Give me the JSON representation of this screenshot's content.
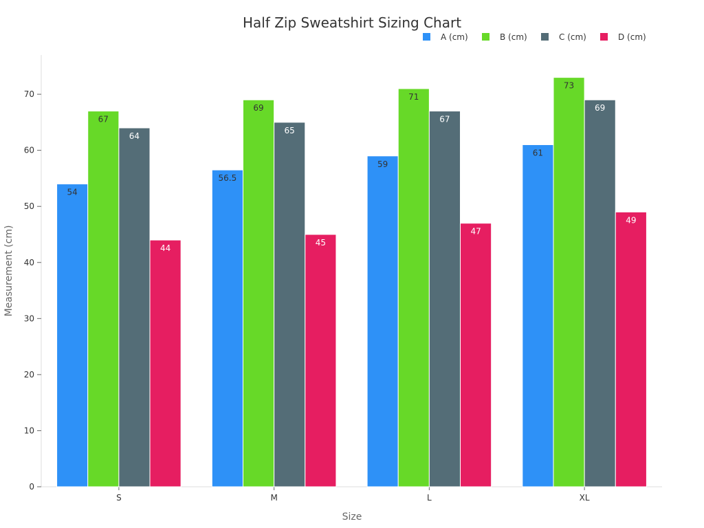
{
  "chart_data": {
    "type": "bar",
    "title": "Half Zip Sweatshirt Sizing Chart",
    "xlabel": "Size",
    "ylabel": "Measurement (cm)",
    "categories": [
      "S",
      "M",
      "L",
      "XL"
    ],
    "ylim": [
      0,
      77
    ],
    "yticks": [
      0,
      10,
      20,
      30,
      40,
      50,
      60,
      70
    ],
    "grid": false,
    "legend_position": "top-right",
    "series": [
      {
        "name": "A (cm)",
        "color": "#2e91f7",
        "label_color": "#333333",
        "values": [
          54,
          56.5,
          59,
          61
        ]
      },
      {
        "name": "B (cm)",
        "color": "#67d928",
        "label_color": "#333333",
        "values": [
          67,
          69,
          71,
          73
        ]
      },
      {
        "name": "C (cm)",
        "color": "#546d77",
        "label_color": "#ffffff",
        "values": [
          64,
          65,
          67,
          69
        ]
      },
      {
        "name": "D (cm)",
        "color": "#e61e61",
        "label_color": "#ffffff",
        "values": [
          44,
          45,
          47,
          49
        ]
      }
    ]
  }
}
